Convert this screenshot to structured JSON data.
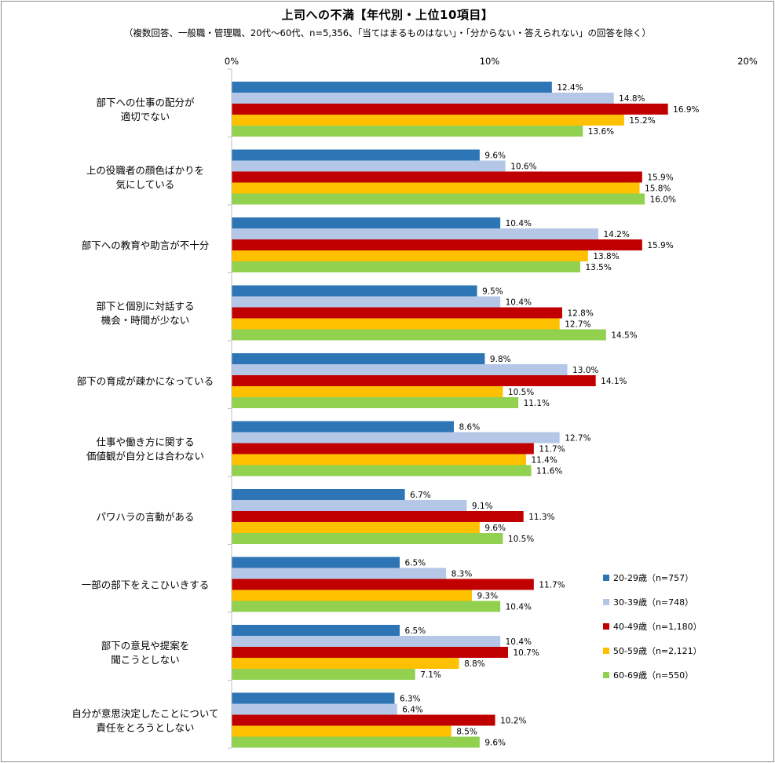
{
  "chart_data": {
    "type": "bar",
    "orientation": "horizontal",
    "title": "上司への不満【年代別・上位10項目】",
    "subtitle": "（複数回答、一般職・管理職、20代〜60代、n=5,356、「当てはまるものはない」・「分からない・答えられない」の回答を除く）",
    "x_ticks": [
      "0%",
      "10%",
      "20%"
    ],
    "xlim": [
      0,
      20
    ],
    "unit": "%",
    "grid": false,
    "legend_position": "bottom-right",
    "categories": [
      [
        "部下への仕事の配分が",
        "適切でない"
      ],
      [
        "上の役職者の顔色ばかりを",
        "気にしている"
      ],
      [
        "部下への教育や助言が不十分"
      ],
      [
        "部下と個別に対話する",
        "機会・時間が少ない"
      ],
      [
        "部下の育成が疎かになっている"
      ],
      [
        "仕事や働き方に関する",
        "価値観が自分とは合わない"
      ],
      [
        "パワハラの言動がある"
      ],
      [
        "一部の部下をえこひいきする"
      ],
      [
        "部下の意見や提案を",
        "聞こうとしない"
      ],
      [
        "自分が意思決定したことについて",
        "責任をとろうとしない"
      ]
    ],
    "series": [
      {
        "name": "20-29歳（n=757）",
        "color": "#2e75b6",
        "values": [
          12.4,
          9.6,
          10.4,
          9.5,
          9.8,
          8.6,
          6.7,
          6.5,
          6.5,
          6.3
        ]
      },
      {
        "name": "30-39歳（n=748）",
        "color": "#b4c7e7",
        "values": [
          14.8,
          10.6,
          14.2,
          10.4,
          13.0,
          12.7,
          9.1,
          8.3,
          10.4,
          6.4
        ]
      },
      {
        "name": "40-49歳（n=1,180）",
        "color": "#c00000",
        "values": [
          16.9,
          15.9,
          15.9,
          12.8,
          14.1,
          11.7,
          11.3,
          11.7,
          10.7,
          10.2
        ]
      },
      {
        "name": "50-59歳（n=2,121）",
        "color": "#ffc000",
        "values": [
          15.2,
          15.8,
          13.8,
          12.7,
          10.5,
          11.4,
          9.6,
          9.3,
          8.8,
          8.5
        ]
      },
      {
        "name": "60-69歳（n=550）",
        "color": "#92d050",
        "values": [
          13.6,
          16.0,
          13.5,
          14.5,
          11.1,
          11.6,
          10.5,
          10.4,
          7.1,
          9.6
        ]
      }
    ]
  }
}
